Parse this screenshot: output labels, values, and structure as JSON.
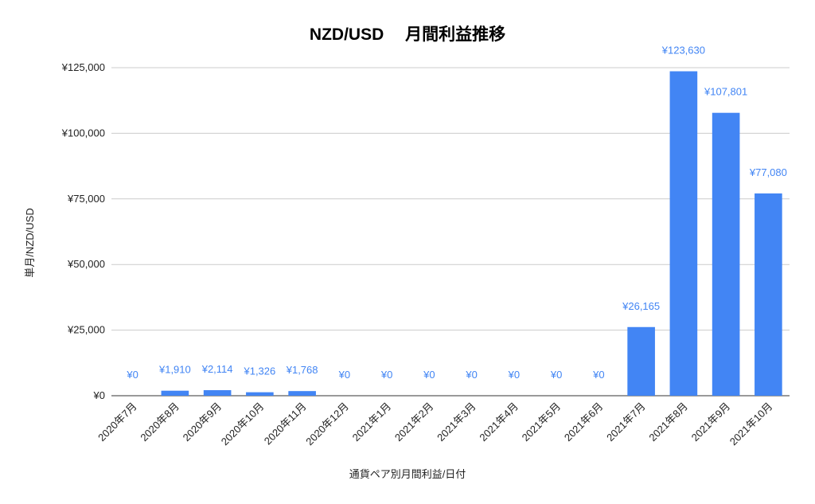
{
  "chart_data": {
    "type": "bar",
    "title": "NZD/USD　 月間利益推移",
    "xlabel": "通貨ペア別月間利益/日付",
    "ylabel": "単月/NZD/USD",
    "ylim": [
      0,
      125000
    ],
    "y_ticks": [
      0,
      25000,
      50000,
      75000,
      100000,
      125000
    ],
    "y_tick_labels": [
      "¥0",
      "¥25,000",
      "¥50,000",
      "¥75,000",
      "¥100,000",
      "¥125,000"
    ],
    "grid": true,
    "bar_color": "#4285F4",
    "label_color": "#4285F4",
    "categories": [
      "2020年7月",
      "2020年8月",
      "2020年9月",
      "2020年10月",
      "2020年11月",
      "2020年12月",
      "2021年1月",
      "2021年2月",
      "2021年3月",
      "2021年4月",
      "2021年5月",
      "2021年6月",
      "2021年7月",
      "2021年8月",
      "2021年9月",
      "2021年10月"
    ],
    "values": [
      0,
      1910,
      2114,
      1326,
      1768,
      0,
      0,
      0,
      0,
      0,
      0,
      0,
      26165,
      123630,
      107801,
      77080
    ],
    "value_labels": [
      "¥0",
      "¥1,910",
      "¥2,114",
      "¥1,326",
      "¥1,768",
      "¥0",
      "¥0",
      "¥0",
      "¥0",
      "¥0",
      "¥0",
      "¥0",
      "¥26,165",
      "¥123,630",
      "¥107,801",
      "¥77,080"
    ]
  }
}
